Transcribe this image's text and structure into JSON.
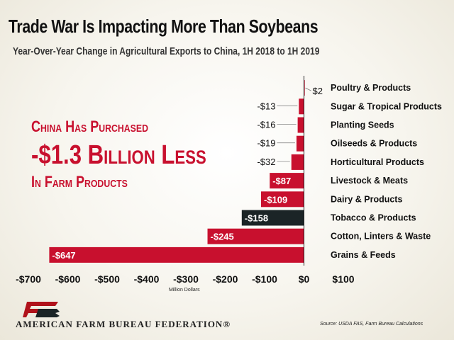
{
  "title": "Trade War Is Impacting More Than Soybeans",
  "subtitle": "Year-Over-Year Change in Agricultural Exports to China, 1H 2018 to 1H 2019",
  "callout": {
    "line1": "China Has Purchased",
    "line2": "-$1.3 Billion Less",
    "line3": "In Farm Products"
  },
  "unit_label": "Million Dollars",
  "organization": "AMERICAN FARM BUREAU FEDERATION®",
  "logo_text": "FB",
  "source": "Source: USDA FAS, Farm Bureau Calculations",
  "colors": {
    "red": "#c8102e",
    "dark": "#1b2426",
    "brand_red": "#b0121b"
  },
  "chart_data": {
    "type": "bar",
    "orientation": "horizontal",
    "categories": [
      "Poultry & Products",
      "Sugar & Tropical Products",
      "Planting Seeds",
      "Oilseeds & Products",
      "Horticultural Products",
      "Livestock & Meats",
      "Dairy & Products",
      "Tobacco & Products",
      "Cotton, Linters & Waste",
      "Grains & Feeds"
    ],
    "values": [
      2,
      -13,
      -16,
      -19,
      -32,
      -87,
      -109,
      -158,
      -245,
      -647
    ],
    "data_labels": [
      "$2",
      "-$13",
      "-$16",
      "-$19",
      "-$32",
      "-$87",
      "-$109",
      "-$158",
      "-$245",
      "-$647"
    ],
    "bar_colors": [
      "#c8102e",
      "#c8102e",
      "#c8102e",
      "#c8102e",
      "#c8102e",
      "#c8102e",
      "#c8102e",
      "#1b2426",
      "#c8102e",
      "#c8102e"
    ],
    "label_inside": [
      false,
      false,
      false,
      false,
      false,
      true,
      true,
      true,
      true,
      true
    ],
    "xlim": [
      -700,
      100
    ],
    "xticks": [
      -700,
      -600,
      -500,
      -400,
      -300,
      -200,
      -100,
      0,
      100
    ],
    "xtick_labels": [
      "-$700",
      "-$600",
      "-$500",
      "-$400",
      "-$300",
      "-$200",
      "-$100",
      "$0",
      "$100"
    ],
    "xlabel": "Million Dollars",
    "grid": false,
    "legend": "none"
  }
}
